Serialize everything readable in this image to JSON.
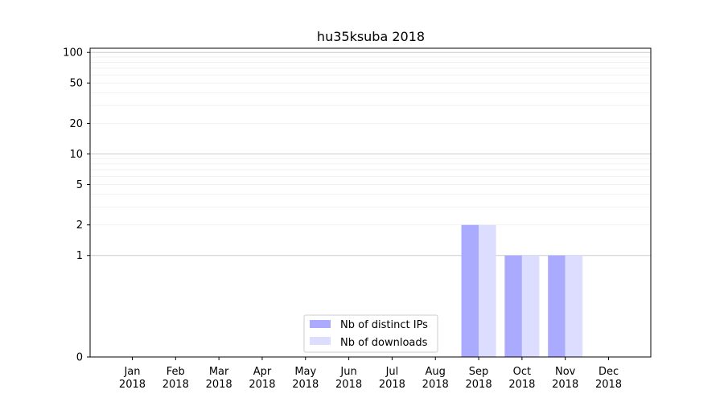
{
  "chart_data": {
    "type": "bar",
    "title": "hu35ksuba 2018",
    "categories": [
      "Jan\n2018",
      "Feb\n2018",
      "Mar\n2018",
      "Apr\n2018",
      "May\n2018",
      "Jun\n2018",
      "Jul\n2018",
      "Aug\n2018",
      "Sep\n2018",
      "Oct\n2018",
      "Nov\n2018",
      "Dec\n2018"
    ],
    "series": [
      {
        "name": "Nb of distinct IPs",
        "color": "#aaaaff",
        "values": [
          0,
          0,
          0,
          0,
          0,
          0,
          0,
          0,
          2,
          1,
          1,
          0
        ]
      },
      {
        "name": "Nb of downloads",
        "color": "#ddddff",
        "values": [
          0,
          0,
          0,
          0,
          0,
          0,
          0,
          0,
          2,
          1,
          1,
          0
        ]
      }
    ],
    "yscale": "symlog",
    "yticks": [
      0,
      1,
      2,
      5,
      10,
      20,
      50,
      100
    ],
    "ylim": [
      0,
      110
    ],
    "grid": true,
    "legend_position": "lower-center"
  }
}
